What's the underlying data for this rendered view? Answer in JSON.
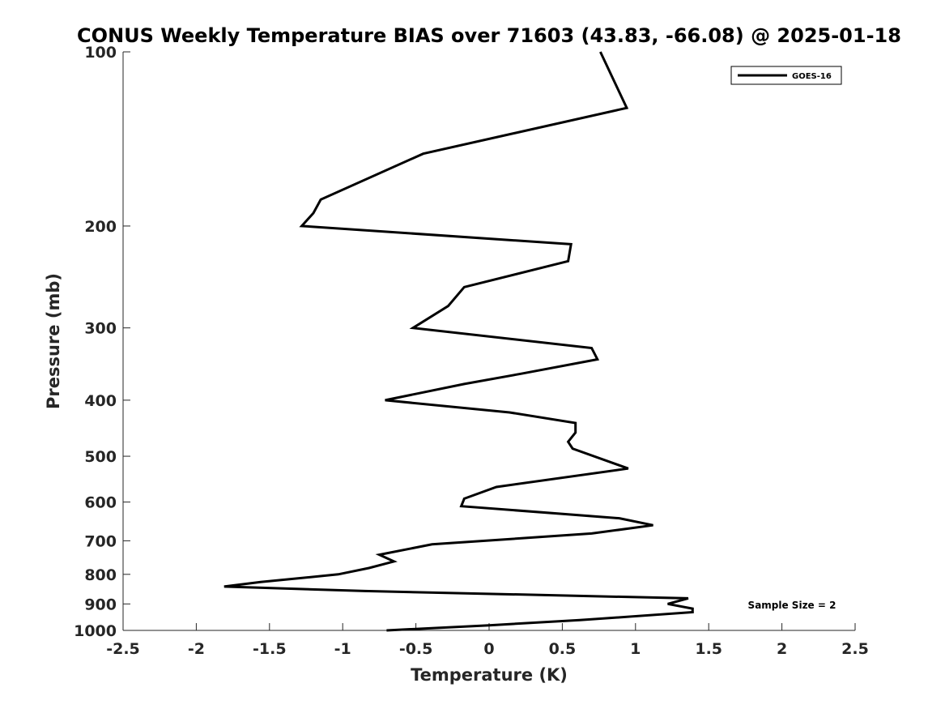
{
  "chart_data": {
    "type": "line",
    "title": "CONUS Weekly Temperature BIAS over 71603 (43.83, -66.08) @ 2025-01-18",
    "xlabel": "Temperature (K)",
    "ylabel": "Pressure (mb)",
    "xlim": [
      -2.5,
      2.5
    ],
    "ylim": [
      1000,
      100
    ],
    "y_scale": "log",
    "x_ticks": [
      "-2.5",
      "-2",
      "-1.5",
      "-1",
      "-0.5",
      "0",
      "0.5",
      "1",
      "1.5",
      "2",
      "2.5"
    ],
    "x_tick_values": [
      -2.5,
      -2,
      -1.5,
      -1,
      -0.5,
      0,
      0.5,
      1,
      1.5,
      2,
      2.5
    ],
    "y_ticks": [
      "100",
      "200",
      "300",
      "400",
      "500",
      "600",
      "700",
      "800",
      "900",
      "1000"
    ],
    "y_tick_values": [
      100,
      200,
      300,
      400,
      500,
      600,
      700,
      800,
      900,
      1000
    ],
    "grid": false,
    "legend_position": "top-right",
    "annotation": "Sample Size = 2",
    "series": [
      {
        "name": "GOES-16",
        "color": "#000000",
        "points": [
          [
            0.76,
            100
          ],
          [
            0.94,
            125
          ],
          [
            -0.45,
            150
          ],
          [
            -1.15,
            180
          ],
          [
            -1.2,
            190
          ],
          [
            -1.28,
            200
          ],
          [
            0.56,
            215
          ],
          [
            0.54,
            230
          ],
          [
            -0.17,
            255
          ],
          [
            -0.28,
            275
          ],
          [
            -0.52,
            300
          ],
          [
            0.7,
            325
          ],
          [
            0.74,
            340
          ],
          [
            0.22,
            360
          ],
          [
            -0.17,
            375
          ],
          [
            -0.71,
            400
          ],
          [
            0.14,
            420
          ],
          [
            0.59,
            438
          ],
          [
            0.59,
            455
          ],
          [
            0.54,
            472
          ],
          [
            0.57,
            485
          ],
          [
            0.95,
            525
          ],
          [
            0.05,
            565
          ],
          [
            -0.17,
            592
          ],
          [
            -0.19,
            610
          ],
          [
            0.89,
            640
          ],
          [
            1.12,
            658
          ],
          [
            0.7,
            680
          ],
          [
            -0.39,
            710
          ],
          [
            -0.75,
            740
          ],
          [
            -0.65,
            760
          ],
          [
            -0.82,
            780
          ],
          [
            -1.03,
            800
          ],
          [
            -1.56,
            825
          ],
          [
            -1.81,
            840
          ],
          [
            -0.85,
            855
          ],
          [
            1.36,
            880
          ],
          [
            1.22,
            900
          ],
          [
            1.39,
            917
          ],
          [
            1.39,
            930
          ],
          [
            0.62,
            960
          ],
          [
            0.0,
            980
          ],
          [
            -0.7,
            1000
          ]
        ]
      }
    ]
  }
}
